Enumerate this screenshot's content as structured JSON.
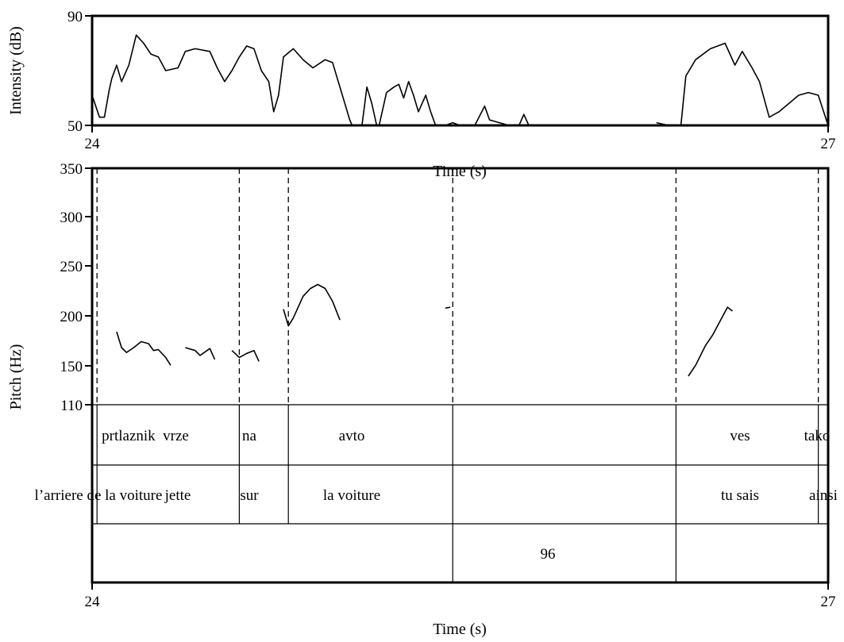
{
  "chart_data": [
    {
      "type": "line",
      "name": "intensity",
      "ylabel": "Intensity (dB)",
      "xlabel": "Time (s)",
      "xlim": [
        24,
        27
      ],
      "ylim": [
        50,
        90
      ],
      "x_ticks": [
        "24",
        "27"
      ],
      "y_ticks": [
        "90",
        "50"
      ],
      "grid": false,
      "series": [
        {
          "segments": [
            [
              [
                24.0,
                61
              ],
              [
                24.03,
                53
              ],
              [
                24.05,
                53
              ],
              [
                24.07,
                63
              ],
              [
                24.08,
                67
              ],
              [
                24.1,
                72
              ],
              [
                24.12,
                66
              ],
              [
                24.15,
                72
              ],
              [
                24.18,
                83
              ],
              [
                24.21,
                80
              ],
              [
                24.24,
                76
              ],
              [
                24.27,
                75
              ],
              [
                24.3,
                70
              ],
              [
                24.35,
                71
              ],
              [
                24.38,
                77
              ],
              [
                24.42,
                78
              ],
              [
                24.48,
                77
              ],
              [
                24.51,
                71
              ],
              [
                24.54,
                66
              ],
              [
                24.57,
                70
              ],
              [
                24.6,
                75
              ],
              [
                24.63,
                79
              ],
              [
                24.66,
                78
              ],
              [
                24.69,
                70
              ],
              [
                24.72,
                66
              ],
              [
                24.74,
                55
              ],
              [
                24.76,
                61
              ],
              [
                24.78,
                75
              ],
              [
                24.82,
                78
              ],
              [
                24.86,
                74
              ],
              [
                24.9,
                71
              ],
              [
                24.95,
                74
              ],
              [
                24.98,
                73
              ],
              [
                25.02,
                61
              ],
              [
                25.05,
                52
              ],
              [
                25.06,
                50
              ]
            ],
            [
              [
                25.1,
                50
              ],
              [
                25.12,
                64
              ],
              [
                25.14,
                58
              ],
              [
                25.16,
                50
              ],
              [
                25.17,
                50
              ],
              [
                25.2,
                62
              ],
              [
                25.23,
                64
              ],
              [
                25.25,
                65
              ],
              [
                25.27,
                60
              ],
              [
                25.29,
                66
              ],
              [
                25.31,
                61
              ],
              [
                25.33,
                55
              ],
              [
                25.36,
                61
              ],
              [
                25.38,
                55
              ],
              [
                25.4,
                50
              ]
            ],
            [
              [
                25.44,
                50
              ],
              [
                25.47,
                51
              ],
              [
                25.5,
                50
              ],
              [
                25.56,
                50
              ],
              [
                25.6,
                57
              ],
              [
                25.62,
                52
              ],
              [
                25.66,
                51
              ],
              [
                25.7,
                50
              ],
              [
                25.74,
                50
              ],
              [
                25.76,
                54
              ],
              [
                25.78,
                50
              ]
            ],
            [
              [
                26.3,
                51
              ],
              [
                26.35,
                50
              ],
              [
                26.4,
                50
              ],
              [
                26.42,
                68
              ],
              [
                26.46,
                74
              ],
              [
                26.52,
                78
              ],
              [
                26.58,
                80
              ],
              [
                26.62,
                72
              ],
              [
                26.65,
                77
              ],
              [
                26.69,
                71
              ],
              [
                26.72,
                66
              ],
              [
                26.76,
                53
              ],
              [
                26.8,
                55
              ],
              [
                26.84,
                58
              ],
              [
                26.88,
                61
              ],
              [
                26.92,
                62
              ],
              [
                26.96,
                61
              ],
              [
                27.0,
                50
              ]
            ]
          ]
        }
      ]
    },
    {
      "type": "line",
      "name": "pitch",
      "ylabel": "Pitch (Hz)",
      "xlabel": "Time (s)",
      "xlim": [
        24,
        27
      ],
      "ylim": [
        110,
        350
      ],
      "x_ticks": [
        "24",
        "27"
      ],
      "y_ticks": [
        "350",
        "300",
        "250",
        "200",
        "150",
        "110"
      ],
      "grid": false,
      "series": [
        {
          "segments": [
            [
              [
                24.1,
                184
              ],
              [
                24.12,
                168
              ],
              [
                24.14,
                163
              ],
              [
                24.17,
                168
              ],
              [
                24.2,
                174
              ],
              [
                24.23,
                172
              ],
              [
                24.25,
                165
              ],
              [
                24.27,
                166
              ],
              [
                24.3,
                158
              ],
              [
                24.32,
                150
              ]
            ],
            [
              [
                24.38,
                168
              ],
              [
                24.42,
                165
              ],
              [
                24.44,
                160
              ],
              [
                24.48,
                167
              ],
              [
                24.5,
                156
              ]
            ],
            [
              [
                24.57,
                165
              ],
              [
                24.6,
                158
              ],
              [
                24.63,
                162
              ],
              [
                24.66,
                165
              ],
              [
                24.68,
                154
              ]
            ],
            [
              [
                24.78,
                207
              ],
              [
                24.8,
                190
              ],
              [
                24.82,
                198
              ],
              [
                24.86,
                220
              ],
              [
                24.89,
                228
              ],
              [
                24.92,
                232
              ],
              [
                24.95,
                228
              ],
              [
                24.98,
                215
              ],
              [
                25.01,
                196
              ]
            ],
            [
              [
                25.44,
                208
              ],
              [
                25.46,
                209
              ]
            ],
            [
              [
                26.43,
                139
              ],
              [
                26.46,
                150
              ],
              [
                26.5,
                170
              ],
              [
                26.53,
                181
              ],
              [
                26.56,
                195
              ],
              [
                26.59,
                209
              ],
              [
                26.61,
                205
              ]
            ]
          ]
        }
      ]
    }
  ],
  "boundaries_s": [
    24.02,
    24.6,
    24.8,
    25.47,
    26.38,
    26.96
  ],
  "tiers": [
    {
      "name": "slovenian",
      "intervals": [
        {
          "start": 24.0,
          "end": 24.6,
          "text": "prtlaznik  vrze"
        },
        {
          "start": 24.6,
          "end": 24.8,
          "text": "na"
        },
        {
          "start": 24.8,
          "end": 25.47,
          "text": "avto"
        },
        {
          "start": 25.47,
          "end": 26.38,
          "text": ""
        },
        {
          "start": 26.38,
          "end": 26.96,
          "text": "ves"
        },
        {
          "start": 26.96,
          "end": 27.0,
          "text": "tako"
        }
      ]
    },
    {
      "name": "french",
      "intervals": [
        {
          "start": 24.0,
          "end": 24.6,
          "text": "l’arriere de la voiture"
        },
        {
          "start": 24.0,
          "end": 24.6,
          "text": "jette"
        },
        {
          "start": 24.6,
          "end": 24.8,
          "text": "sur"
        },
        {
          "start": 24.8,
          "end": 25.47,
          "text": "la voiture"
        },
        {
          "start": 25.47,
          "end": 26.38,
          "text": ""
        },
        {
          "start": 26.38,
          "end": 26.96,
          "text": "tu sais"
        },
        {
          "start": 26.96,
          "end": 27.0,
          "text": "ainsi"
        }
      ]
    },
    {
      "name": "pause",
      "intervals": [
        {
          "start": 24.0,
          "end": 25.47,
          "text": ""
        },
        {
          "start": 25.47,
          "end": 26.38,
          "text": "96"
        },
        {
          "start": 26.38,
          "end": 27.0,
          "text": ""
        }
      ]
    }
  ]
}
